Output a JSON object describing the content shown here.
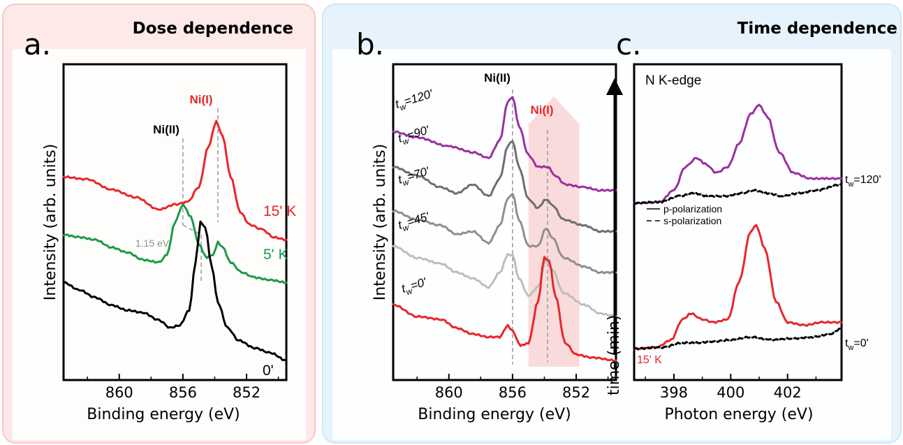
{
  "colors": {
    "red": "#e8262a",
    "green": "#1b9a47",
    "black": "#000000",
    "purple": "#9a2fa0",
    "gray_dark": "#6e6e6e",
    "gray_mid": "#8f8f8f",
    "gray_light": "#bdbdbd",
    "dose_bg": "#fbe3e2",
    "time_bg": "#e2f1fb",
    "nii_band": "#f9cfcf"
  },
  "panels": {
    "dose_title": "Dose dependence",
    "time_title": "Time dependence"
  },
  "chart_data": [
    {
      "panel": "a.",
      "type": "line",
      "title": "Dose dependence",
      "xlabel": "Binding energy (eV)",
      "ylabel": "Intensity (arb. units)",
      "xlim": [
        863.5,
        849.5
      ],
      "x_reversed": true,
      "xticks": [
        860,
        856,
        852
      ],
      "xtick_labels": [
        "860",
        "856",
        "852"
      ],
      "ylim": [
        0,
        1
      ],
      "grid": false,
      "series": [
        {
          "name": "15' K",
          "color": "#e8262a",
          "offset": 0.42,
          "curve": [
            [
              863.5,
              0.31
            ],
            [
              862,
              0.3
            ],
            [
              860.5,
              0.26
            ],
            [
              859,
              0.23
            ],
            [
              857.5,
              0.18
            ],
            [
              856.5,
              0.2
            ],
            [
              855.7,
              0.21
            ],
            [
              855.0,
              0.27
            ],
            [
              854.4,
              0.43
            ],
            [
              853.9,
              0.53
            ],
            [
              853.5,
              0.47
            ],
            [
              853.0,
              0.31
            ],
            [
              852.4,
              0.17
            ],
            [
              851.8,
              0.12
            ],
            [
              851.0,
              0.1
            ],
            [
              850.3,
              0.07
            ],
            [
              849.5,
              0.06
            ]
          ]
        },
        {
          "name": "5' K",
          "color": "#1b9a47",
          "offset": 0.28,
          "curve": [
            [
              863.5,
              0.22
            ],
            [
              862.5,
              0.21
            ],
            [
              861.5,
              0.2
            ],
            [
              860.5,
              0.17
            ],
            [
              859.5,
              0.15
            ],
            [
              858.5,
              0.12
            ],
            [
              857.5,
              0.11
            ],
            [
              857.0,
              0.14
            ],
            [
              856.5,
              0.27
            ],
            [
              856.0,
              0.34
            ],
            [
              855.5,
              0.29
            ],
            [
              855.0,
              0.18
            ],
            [
              854.5,
              0.13
            ],
            [
              854.1,
              0.14
            ],
            [
              853.8,
              0.19
            ],
            [
              853.5,
              0.17
            ],
            [
              853.0,
              0.11
            ],
            [
              852.3,
              0.07
            ],
            [
              851.5,
              0.05
            ],
            [
              850.5,
              0.04
            ],
            [
              849.5,
              0.03
            ]
          ]
        },
        {
          "name": "0'",
          "color": "#000000",
          "offset": 0.0,
          "curve": [
            [
              863.5,
              0.31
            ],
            [
              862.5,
              0.28
            ],
            [
              861.5,
              0.25
            ],
            [
              860.5,
              0.22
            ],
            [
              859.5,
              0.2
            ],
            [
              858.5,
              0.19
            ],
            [
              857.5,
              0.16
            ],
            [
              856.8,
              0.13
            ],
            [
              856.2,
              0.14
            ],
            [
              855.6,
              0.2
            ],
            [
              855.2,
              0.39
            ],
            [
              854.9,
              0.55
            ],
            [
              854.6,
              0.53
            ],
            [
              854.2,
              0.38
            ],
            [
              853.8,
              0.23
            ],
            [
              853.2,
              0.13
            ],
            [
              852.5,
              0.08
            ],
            [
              851.5,
              0.05
            ],
            [
              850.5,
              0.03
            ],
            [
              849.5,
              0.0
            ]
          ]
        }
      ],
      "annotations": [
        "Ni(II)",
        "Ni(I)",
        "1.15 eV"
      ]
    },
    {
      "panel": "b.",
      "type": "line",
      "xlabel": "Binding energy (eV)",
      "ylabel": "Intensity (arb. units)",
      "xlim": [
        863.5,
        849.5
      ],
      "x_reversed": true,
      "xticks": [
        860,
        856,
        852
      ],
      "xtick_labels": [
        "860",
        "856",
        "852"
      ],
      "ylim": [
        0,
        1
      ],
      "grid": false,
      "series": [
        {
          "name": "120'",
          "color": "#9a2fa0",
          "offset": 0.6,
          "curve": [
            [
              863.5,
              0.18
            ],
            [
              862,
              0.16
            ],
            [
              860,
              0.13
            ],
            [
              858.5,
              0.11
            ],
            [
              857.5,
              0.09
            ],
            [
              856.8,
              0.15
            ],
            [
              856.3,
              0.28
            ],
            [
              856.0,
              0.3
            ],
            [
              855.6,
              0.2
            ],
            [
              855.0,
              0.1
            ],
            [
              854.4,
              0.06
            ],
            [
              853.8,
              0.06
            ],
            [
              853.3,
              0.03
            ],
            [
              852.7,
              0.0
            ],
            [
              851.5,
              -0.01
            ],
            [
              850.5,
              -0.02
            ],
            [
              849.5,
              -0.02
            ]
          ]
        },
        {
          "name": "90'",
          "color": "#6e6e6e",
          "offset": 0.48,
          "curve": [
            [
              863.5,
              0.18
            ],
            [
              862,
              0.15
            ],
            [
              860.5,
              0.11
            ],
            [
              859.5,
              0.09
            ],
            [
              858.5,
              0.12
            ],
            [
              857.5,
              0.08
            ],
            [
              856.8,
              0.14
            ],
            [
              856.3,
              0.25
            ],
            [
              856.0,
              0.27
            ],
            [
              855.6,
              0.18
            ],
            [
              855.0,
              0.07
            ],
            [
              854.4,
              0.04
            ],
            [
              853.9,
              0.07
            ],
            [
              853.5,
              0.05
            ],
            [
              852.8,
              0.0
            ],
            [
              851.5,
              -0.02
            ],
            [
              850.5,
              -0.04
            ],
            [
              849.5,
              -0.04
            ]
          ]
        },
        {
          "name": "70'",
          "color": "#8f8f8f",
          "offset": 0.34,
          "curve": [
            [
              863.5,
              0.17
            ],
            [
              862,
              0.14
            ],
            [
              860.5,
              0.12
            ],
            [
              859.5,
              0.09
            ],
            [
              858.5,
              0.1
            ],
            [
              857.5,
              0.06
            ],
            [
              856.8,
              0.12
            ],
            [
              856.3,
              0.21
            ],
            [
              856.0,
              0.23
            ],
            [
              855.6,
              0.14
            ],
            [
              855.0,
              0.05
            ],
            [
              854.4,
              0.05
            ],
            [
              853.9,
              0.11
            ],
            [
              853.5,
              0.08
            ],
            [
              852.8,
              0.01
            ],
            [
              851.5,
              -0.02
            ],
            [
              850.5,
              -0.04
            ],
            [
              849.5,
              -0.04
            ]
          ]
        },
        {
          "name": "45'",
          "color": "#bdbdbd",
          "offset": 0.2,
          "curve": [
            [
              863.5,
              0.19
            ],
            [
              862,
              0.15
            ],
            [
              860.5,
              0.13
            ],
            [
              859.5,
              0.1
            ],
            [
              858.5,
              0.08
            ],
            [
              857.5,
              0.05
            ],
            [
              856.8,
              0.1
            ],
            [
              856.3,
              0.16
            ],
            [
              856.0,
              0.16
            ],
            [
              855.6,
              0.08
            ],
            [
              855.0,
              0.02
            ],
            [
              854.4,
              0.05
            ],
            [
              853.9,
              0.14
            ],
            [
              853.5,
              0.11
            ],
            [
              852.8,
              0.03
            ],
            [
              851.5,
              -0.01
            ],
            [
              850.5,
              -0.04
            ],
            [
              849.5,
              -0.05
            ]
          ]
        },
        {
          "name": "0'",
          "color": "#e8262a",
          "offset": 0.0,
          "curve": [
            [
              863.5,
              0.19
            ],
            [
              862,
              0.15
            ],
            [
              860.5,
              0.14
            ],
            [
              859.5,
              0.11
            ],
            [
              858.5,
              0.09
            ],
            [
              857.5,
              0.08
            ],
            [
              856.8,
              0.08
            ],
            [
              856.3,
              0.12
            ],
            [
              856.0,
              0.1
            ],
            [
              855.5,
              0.05
            ],
            [
              855.0,
              0.06
            ],
            [
              854.4,
              0.2
            ],
            [
              854.0,
              0.35
            ],
            [
              853.7,
              0.34
            ],
            [
              853.3,
              0.22
            ],
            [
              852.7,
              0.06
            ],
            [
              852.0,
              0.02
            ],
            [
              851.0,
              0.01
            ],
            [
              849.5,
              0.0
            ]
          ]
        }
      ],
      "series_label_prefix": "t",
      "series_label_sub": "w",
      "annotations": [
        "Ni(II)",
        "Ni(I)"
      ]
    },
    {
      "panel": "c.",
      "type": "line",
      "title": "N K-edge",
      "xlabel": "Photon energy (eV)",
      "ylabel": "time (min)",
      "xlim": [
        396.6,
        403.9
      ],
      "xticks": [
        398,
        400,
        402
      ],
      "xtick_labels": [
        "398",
        "400",
        "402"
      ],
      "ylim": [
        0,
        1
      ],
      "grid": false,
      "legend": {
        "entries": [
          "p-polarization",
          "s-polarization"
        ],
        "placement": "center-left"
      },
      "series": [
        {
          "name": "120' p-polarization",
          "color": "#9a2fa0",
          "dash": false,
          "curve": [
            [
              396.6,
              0.536
            ],
            [
              397.5,
              0.54
            ],
            [
              398.0,
              0.58
            ],
            [
              398.4,
              0.66
            ],
            [
              398.8,
              0.69
            ],
            [
              399.1,
              0.67
            ],
            [
              399.5,
              0.64
            ],
            [
              399.9,
              0.66
            ],
            [
              400.3,
              0.74
            ],
            [
              400.7,
              0.84
            ],
            [
              401.0,
              0.87
            ],
            [
              401.3,
              0.83
            ],
            [
              401.7,
              0.71
            ],
            [
              402.2,
              0.64
            ],
            [
              402.8,
              0.62
            ],
            [
              403.3,
              0.62
            ],
            [
              403.9,
              0.62
            ]
          ]
        },
        {
          "name": "120' s-polarization",
          "color": "#000000",
          "dash": true,
          "curve": [
            [
              396.6,
              0.536
            ],
            [
              397.5,
              0.54
            ],
            [
              398.2,
              0.56
            ],
            [
              398.7,
              0.57
            ],
            [
              399.2,
              0.56
            ],
            [
              399.8,
              0.56
            ],
            [
              400.4,
              0.57
            ],
            [
              400.8,
              0.58
            ],
            [
              401.3,
              0.57
            ],
            [
              401.8,
              0.56
            ],
            [
              402.4,
              0.57
            ],
            [
              403.0,
              0.58
            ],
            [
              403.9,
              0.6
            ]
          ]
        },
        {
          "name": "0' p-polarization",
          "color": "#e8262a",
          "dash": false,
          "curve": [
            [
              396.6,
              0.04
            ],
            [
              397.4,
              0.045
            ],
            [
              397.9,
              0.07
            ],
            [
              398.3,
              0.14
            ],
            [
              398.6,
              0.16
            ],
            [
              399.0,
              0.14
            ],
            [
              399.4,
              0.13
            ],
            [
              399.9,
              0.14
            ],
            [
              400.3,
              0.27
            ],
            [
              400.7,
              0.44
            ],
            [
              400.9,
              0.46
            ],
            [
              401.2,
              0.38
            ],
            [
              401.6,
              0.2
            ],
            [
              402.0,
              0.13
            ],
            [
              402.6,
              0.12
            ],
            [
              403.2,
              0.13
            ],
            [
              403.9,
              0.13
            ]
          ]
        },
        {
          "name": "0' s-polarization",
          "color": "#000000",
          "dash": true,
          "curve": [
            [
              396.6,
              0.04
            ],
            [
              397.6,
              0.045
            ],
            [
              398.3,
              0.06
            ],
            [
              398.8,
              0.06
            ],
            [
              399.4,
              0.065
            ],
            [
              400.0,
              0.07
            ],
            [
              400.7,
              0.08
            ],
            [
              401.4,
              0.07
            ],
            [
              402.2,
              0.075
            ],
            [
              402.9,
              0.08
            ],
            [
              403.5,
              0.09
            ],
            [
              403.9,
              0.11
            ]
          ]
        }
      ],
      "labels": [
        "120'",
        "0'"
      ],
      "annotation": "15' K"
    }
  ],
  "labels": {
    "a": {
      "letter": "a.",
      "xlabel": "Binding energy (eV)",
      "ylabel": "Intensity (arb. units)",
      "nii": "Ni(II)",
      "ni1": "Ni(I)",
      "shift": "1.15 eV",
      "s15": "15' K",
      "s5": "5' K",
      "s0": "0'"
    },
    "b": {
      "letter": "b.",
      "xlabel": "Binding energy (eV)",
      "ylabel": "Intensity (arb. units)",
      "nii": "Ni(II)",
      "ni1": "Ni(I)",
      "t_prefix": "t",
      "t_sub": "w",
      "t120": "=120'",
      "t90": "=90'",
      "t70": "=70'",
      "t45": "=45'",
      "t0": "=0'"
    },
    "c": {
      "letter": "c.",
      "xlabel": "Photon energy (eV)",
      "ylabel": "time (min)",
      "title": "N K-edge",
      "p_pol": "p-polarization",
      "s_pol": "s-polarization",
      "t_prefix": "t",
      "t_sub": "w",
      "t120": "=120'",
      "t0": "=0'",
      "dose": "15' K"
    }
  }
}
